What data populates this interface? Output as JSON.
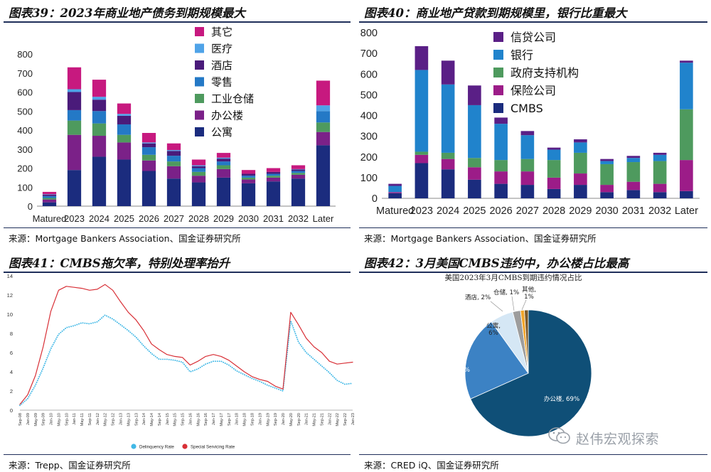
{
  "panels": [
    {
      "title": "图表39：2023年商业地产债务到期规模最大",
      "source": "来源：Mortgage Bankers Association、国金证券研究所",
      "chart_data": {
        "type": "bar",
        "stacked": true,
        "categories": [
          "Matured",
          "2023",
          "2024",
          "2025",
          "2026",
          "2027",
          "2028",
          "2029",
          "2030",
          "2031",
          "2032",
          "Later"
        ],
        "ylim": [
          0,
          800
        ],
        "yticks": [
          0,
          100,
          200,
          300,
          400,
          500,
          600,
          700,
          800
        ],
        "legend_position": "top-right",
        "series": [
          {
            "name": "公寓",
            "color": "#1b2c7e",
            "values": [
              20,
              190,
              260,
              245,
              185,
              145,
              125,
              150,
              120,
              130,
              145,
              320
            ]
          },
          {
            "name": "办公楼",
            "color": "#7b2188",
            "values": [
              15,
              185,
              110,
              90,
              55,
              65,
              35,
              45,
              20,
              20,
              20,
              70
            ]
          },
          {
            "name": "工业仓储",
            "color": "#4e9a5e",
            "values": [
              8,
              75,
              65,
              40,
              30,
              25,
              20,
              20,
              10,
              10,
              10,
              50
            ]
          },
          {
            "name": "零售",
            "color": "#2479c6",
            "values": [
              10,
              55,
              65,
              55,
              40,
              30,
              20,
              20,
              10,
              10,
              10,
              60
            ]
          },
          {
            "name": "酒店",
            "color": "#4a1b7a",
            "values": [
              8,
              95,
              60,
              45,
              20,
              25,
              10,
              15,
              10,
              10,
              8,
              0
            ]
          },
          {
            "name": "医疗",
            "color": "#4fa3e8",
            "values": [
              2,
              15,
              15,
              10,
              5,
              5,
              5,
              5,
              0,
              0,
              2,
              30
            ]
          },
          {
            "name": "其它",
            "color": "#c7197f",
            "values": [
              12,
              115,
              90,
              55,
              50,
              35,
              30,
              25,
              20,
              20,
              20,
              130
            ]
          }
        ]
      }
    },
    {
      "title": "图表40：商业地产贷款到期规模里，银行比重最大",
      "source": "来源：Mortgage Bankers Association、国金证券研究所",
      "chart_data": {
        "type": "bar",
        "stacked": true,
        "categories": [
          "Matured",
          "2023",
          "2024",
          "2025",
          "2026",
          "2027",
          "2028",
          "2029",
          "2030",
          "2031",
          "2032",
          "Later"
        ],
        "ylim": [
          0,
          800
        ],
        "yticks": [
          0,
          100,
          200,
          300,
          400,
          500,
          600,
          700,
          800
        ],
        "legend_position": "top-right",
        "series": [
          {
            "name": "CMBS",
            "color": "#1b2c7e",
            "values": [
              25,
              170,
              140,
              90,
              70,
              65,
              45,
              65,
              30,
              40,
              30,
              35
            ]
          },
          {
            "name": "保险公司",
            "color": "#9c1c88",
            "values": [
              5,
              40,
              50,
              60,
              60,
              65,
              55,
              55,
              35,
              40,
              40,
              150
            ]
          },
          {
            "name": "政府支持机构",
            "color": "#4e9a5e",
            "values": [
              0,
              15,
              30,
              45,
              55,
              60,
              85,
              100,
              100,
              95,
              110,
              245
            ]
          },
          {
            "name": "银行",
            "color": "#2083cc",
            "values": [
              30,
              395,
              330,
              255,
              175,
              115,
              50,
              50,
              15,
              20,
              30,
              225
            ]
          },
          {
            "name": "信贷公司",
            "color": "#5a1f86",
            "values": [
              10,
              115,
              115,
              95,
              30,
              20,
              10,
              15,
              10,
              10,
              10,
              10
            ]
          }
        ]
      }
    },
    {
      "title": "图表41：CMBS拖欠率，特别处理率抬升",
      "source": "来源：Trepp、国金证券研究所",
      "chart_data": {
        "type": "line",
        "ylim": [
          0,
          14
        ],
        "yticks": [
          0,
          2,
          4,
          6,
          8,
          10,
          12,
          14
        ],
        "x_ticks": [
          "Sep-08",
          "Jan-09",
          "May-09",
          "Sep-09",
          "Jan-10",
          "May-10",
          "Sep-10",
          "Jan-11",
          "May-11",
          "Sep-11",
          "Jan-12",
          "May-12",
          "Sep-12",
          "Jan-13",
          "May-13",
          "Sep-13",
          "Jan-14",
          "May-14",
          "Sep-14",
          "Jan-15",
          "May-15",
          "Sep-15",
          "Jan-16",
          "May-16",
          "Sep-16",
          "Jan-17",
          "May-17",
          "Sep-17",
          "Jan-18",
          "May-18",
          "Sep-18",
          "Jan-19",
          "May-19",
          "Sep-19",
          "Jan-20",
          "May-20",
          "Sep-20",
          "Jan-21",
          "May-21",
          "Sep-21",
          "Jan-22",
          "May-22",
          "Sep-22",
          "Jan-23"
        ],
        "legend_position": "bottom",
        "series": [
          {
            "name": "Delinquency Rate",
            "color": "#41b8e6",
            "style": "dotted",
            "x": [
              0,
              1,
              2,
              3,
              4,
              5,
              6,
              7,
              8,
              9,
              10,
              11,
              12,
              13,
              14,
              15,
              16,
              17,
              18,
              19,
              20,
              21,
              22,
              23,
              24,
              25,
              26,
              27,
              28,
              29,
              30,
              31,
              32,
              33,
              34,
              35,
              36,
              37,
              38,
              39,
              40,
              41,
              42,
              43
            ],
            "values": [
              0.5,
              1.2,
              2.6,
              4.4,
              6.4,
              7.9,
              8.6,
              8.8,
              9.1,
              9.0,
              9.2,
              9.9,
              9.5,
              8.9,
              8.3,
              7.6,
              6.7,
              5.9,
              5.3,
              5.3,
              5.2,
              5.0,
              4.0,
              4.3,
              4.8,
              5.1,
              5.1,
              4.7,
              4.1,
              3.7,
              3.3,
              3.0,
              2.6,
              2.3,
              2.0,
              9.3,
              7.1,
              6.0,
              5.3,
              4.6,
              3.9,
              3.1,
              2.7,
              2.8
            ]
          },
          {
            "name": "Special Servicing Rate",
            "color": "#d82f36",
            "style": "solid",
            "x": [
              0,
              1,
              2,
              3,
              4,
              5,
              6,
              7,
              8,
              9,
              10,
              11,
              12,
              13,
              14,
              15,
              16,
              17,
              18,
              19,
              20,
              21,
              22,
              23,
              24,
              25,
              26,
              27,
              28,
              29,
              30,
              31,
              32,
              33,
              34,
              35,
              36,
              37,
              38,
              39,
              40,
              41,
              42,
              43
            ],
            "values": [
              0.6,
              1.6,
              3.6,
              6.6,
              10.3,
              12.5,
              12.9,
              12.8,
              12.7,
              12.5,
              12.6,
              13.1,
              12.5,
              11.3,
              10.2,
              9.4,
              8.3,
              6.9,
              6.3,
              5.8,
              5.6,
              5.5,
              4.7,
              5.1,
              5.6,
              5.8,
              5.6,
              5.2,
              4.6,
              4.0,
              3.5,
              3.2,
              3.0,
              2.5,
              2.2,
              10.2,
              8.9,
              7.5,
              6.6,
              6.0,
              5.1,
              4.8,
              4.9,
              5.0
            ]
          }
        ]
      }
    },
    {
      "title": "图表42：3月美国CMBS违约中，办公楼占比最高",
      "source": "来源：CRED iQ、国金证券研究所",
      "chart_data": {
        "type": "pie",
        "title": "美国2023年3月CMBS到期违约情况占比",
        "slices": [
          {
            "name": "办公楼",
            "value": 69,
            "label": "办公楼, 69%",
            "color": "#0f4f77"
          },
          {
            "name": "零售",
            "value": 22,
            "label": "零售, 22%",
            "color": "#3c82c4"
          },
          {
            "name": "公寓",
            "value": 6,
            "label": "公寓,\n6%",
            "color": "#d5e7f5"
          },
          {
            "name": "酒店",
            "value": 2,
            "label": "酒店, 2%",
            "color": "#9d9d9d"
          },
          {
            "name": "仓储",
            "value": 1,
            "label": "仓储, 1%",
            "color": "#f1a52b"
          },
          {
            "name": "其他",
            "value": 1,
            "label": "其他,\n1%",
            "color": "#7c5a2b"
          }
        ]
      }
    }
  ],
  "watermark": "赵伟宏观探索"
}
